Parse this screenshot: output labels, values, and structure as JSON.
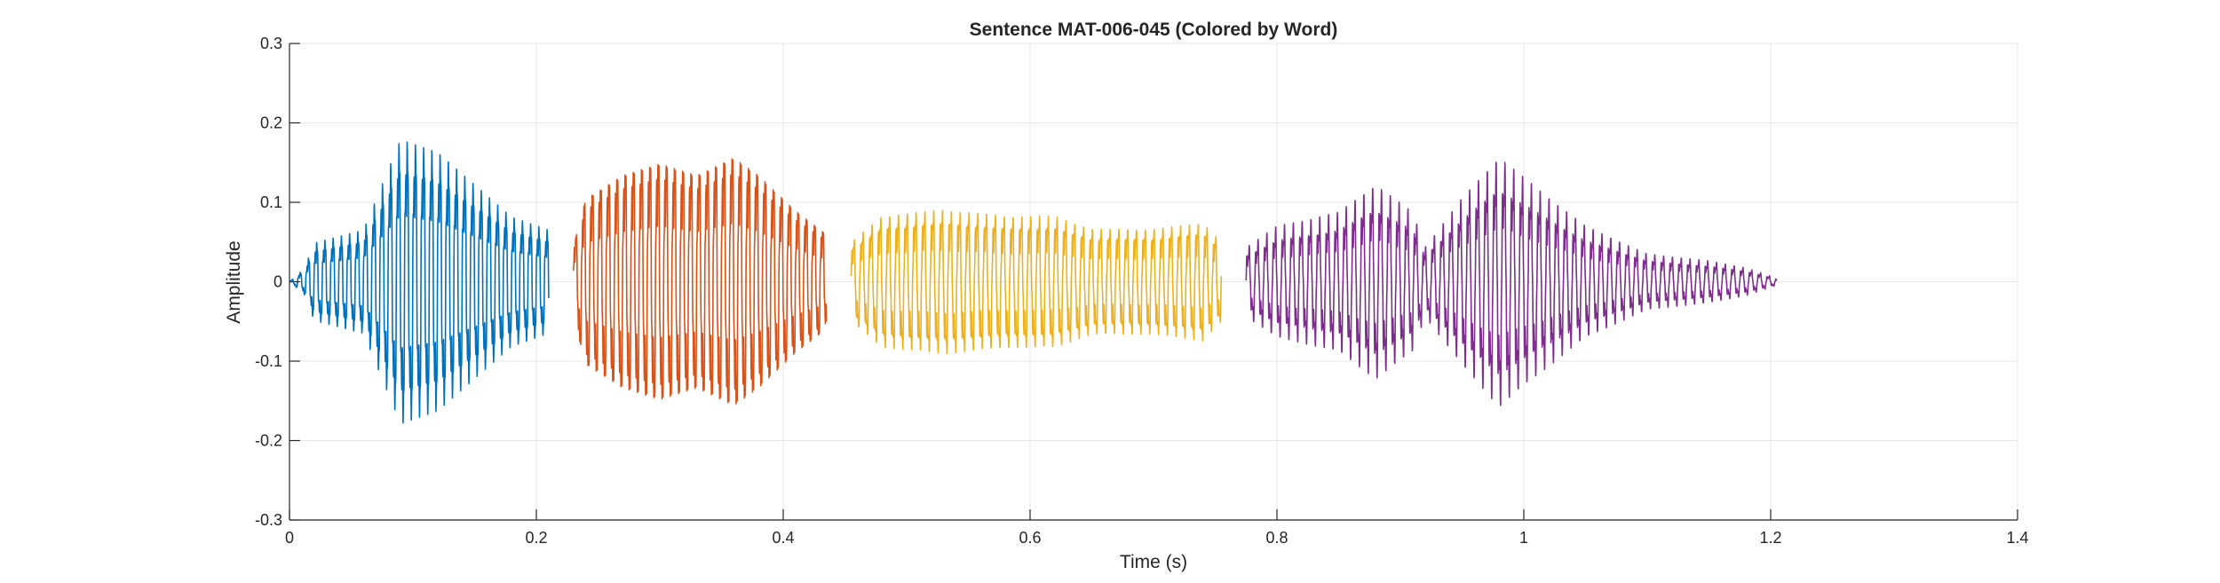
{
  "chart_data": {
    "type": "line",
    "title": "Sentence MAT-006-045 (Colored by Word)",
    "xlabel": "Time (s)",
    "ylabel": "Amplitude",
    "xlim": [
      0,
      1.4
    ],
    "ylim": [
      -0.3,
      0.3
    ],
    "x_ticks": [
      0,
      0.2,
      0.4,
      0.6,
      0.8,
      1,
      1.2,
      1.4
    ],
    "x_tick_labels": [
      "0",
      "0.2",
      "0.4",
      "0.6",
      "0.8",
      "1",
      "1.2",
      "1.4"
    ],
    "y_ticks": [
      0.3,
      0.2,
      0.1,
      0,
      -0.1,
      -0.2,
      -0.3
    ],
    "y_tick_labels": [
      "0.3",
      "0.2",
      "0.1",
      "0",
      "-0.1",
      "-0.2",
      "-0.3"
    ],
    "grid": true,
    "series": [
      {
        "color": "#0072BD",
        "x_range": [
          0,
          0.21
        ],
        "pitch_hz": 150,
        "envelope": [
          [
            0,
            0
          ],
          [
            0.012,
            0.02
          ],
          [
            0.02,
            0.06
          ],
          [
            0.06,
            0.08
          ],
          [
            0.075,
            0.15
          ],
          [
            0.09,
            0.22
          ],
          [
            0.12,
            0.2
          ],
          [
            0.15,
            0.15
          ],
          [
            0.18,
            0.1
          ],
          [
            0.21,
            0.08
          ]
        ]
      },
      {
        "color": "#D95319",
        "x_range": [
          0.23,
          0.435
        ],
        "pitch_hz": 150,
        "envelope": [
          [
            0.23,
            0.06
          ],
          [
            0.24,
            0.14
          ],
          [
            0.27,
            0.18
          ],
          [
            0.3,
            0.2
          ],
          [
            0.33,
            0.18
          ],
          [
            0.36,
            0.21
          ],
          [
            0.38,
            0.18
          ],
          [
            0.41,
            0.12
          ],
          [
            0.435,
            0.08
          ]
        ]
      },
      {
        "color": "#EDB120",
        "x_range": [
          0.455,
          0.755
        ],
        "pitch_hz": 140,
        "envelope": [
          [
            0.455,
            0.06
          ],
          [
            0.48,
            0.1
          ],
          [
            0.53,
            0.11
          ],
          [
            0.58,
            0.1
          ],
          [
            0.62,
            0.1
          ],
          [
            0.65,
            0.08
          ],
          [
            0.7,
            0.08
          ],
          [
            0.74,
            0.09
          ],
          [
            0.755,
            0.06
          ]
        ]
      },
      {
        "color": "#7E2F8E",
        "x_range": [
          0.775,
          1.205
        ],
        "pitch_hz": 140,
        "envelope": [
          [
            0.775,
            0.05
          ],
          [
            0.8,
            0.08
          ],
          [
            0.85,
            0.1
          ],
          [
            0.88,
            0.14
          ],
          [
            0.91,
            0.1
          ],
          [
            0.92,
            0.05
          ],
          [
            0.95,
            0.12
          ],
          [
            0.98,
            0.18
          ],
          [
            1.0,
            0.15
          ],
          [
            1.05,
            0.08
          ],
          [
            1.1,
            0.04
          ],
          [
            1.15,
            0.03
          ],
          [
            1.18,
            0.02
          ],
          [
            1.205,
            0.005
          ]
        ]
      }
    ]
  }
}
